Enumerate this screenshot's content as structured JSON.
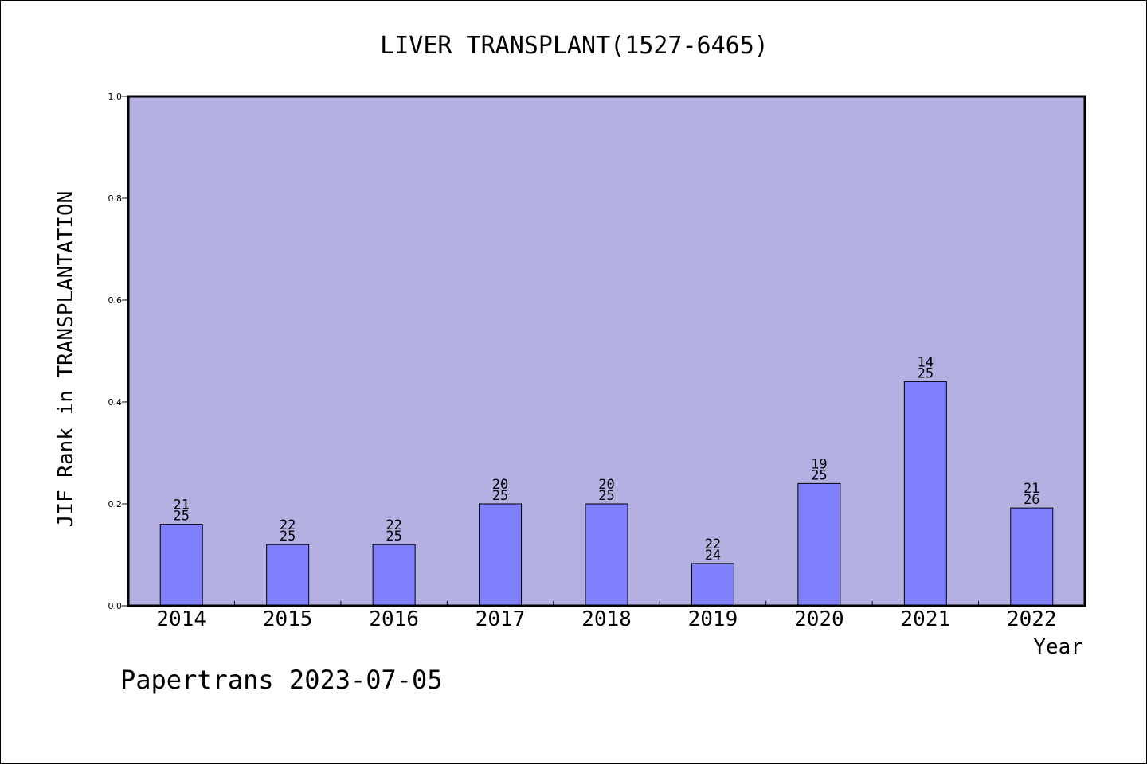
{
  "chart_data": {
    "type": "bar",
    "title": "LIVER TRANSPLANT(1527-6465)",
    "xlabel": "Year",
    "ylabel": "JIF Rank in TRANSPLANTATION",
    "ylim": [
      0,
      1.0
    ],
    "yticks": [
      "0.0",
      "0.2",
      "0.4",
      "0.6",
      "0.8",
      "1.0"
    ],
    "categories": [
      "2014",
      "2015",
      "2016",
      "2017",
      "2018",
      "2019",
      "2020",
      "2021",
      "2022"
    ],
    "values": [
      0.16,
      0.12,
      0.12,
      0.2,
      0.2,
      0.083,
      0.24,
      0.44,
      0.192
    ],
    "labels_top": [
      "21",
      "22",
      "22",
      "20",
      "20",
      "22",
      "19",
      "14",
      "21"
    ],
    "labels_bottom": [
      "25",
      "25",
      "25",
      "25",
      "25",
      "24",
      "25",
      "25",
      "26"
    ],
    "colors": {
      "plot_background": "#b5b0e2",
      "bar_fill": "#8080fc",
      "axis": "#000000"
    },
    "grid": false,
    "legend": "none"
  },
  "footer": {
    "watermark": "Papertrans 2023-07-05"
  }
}
